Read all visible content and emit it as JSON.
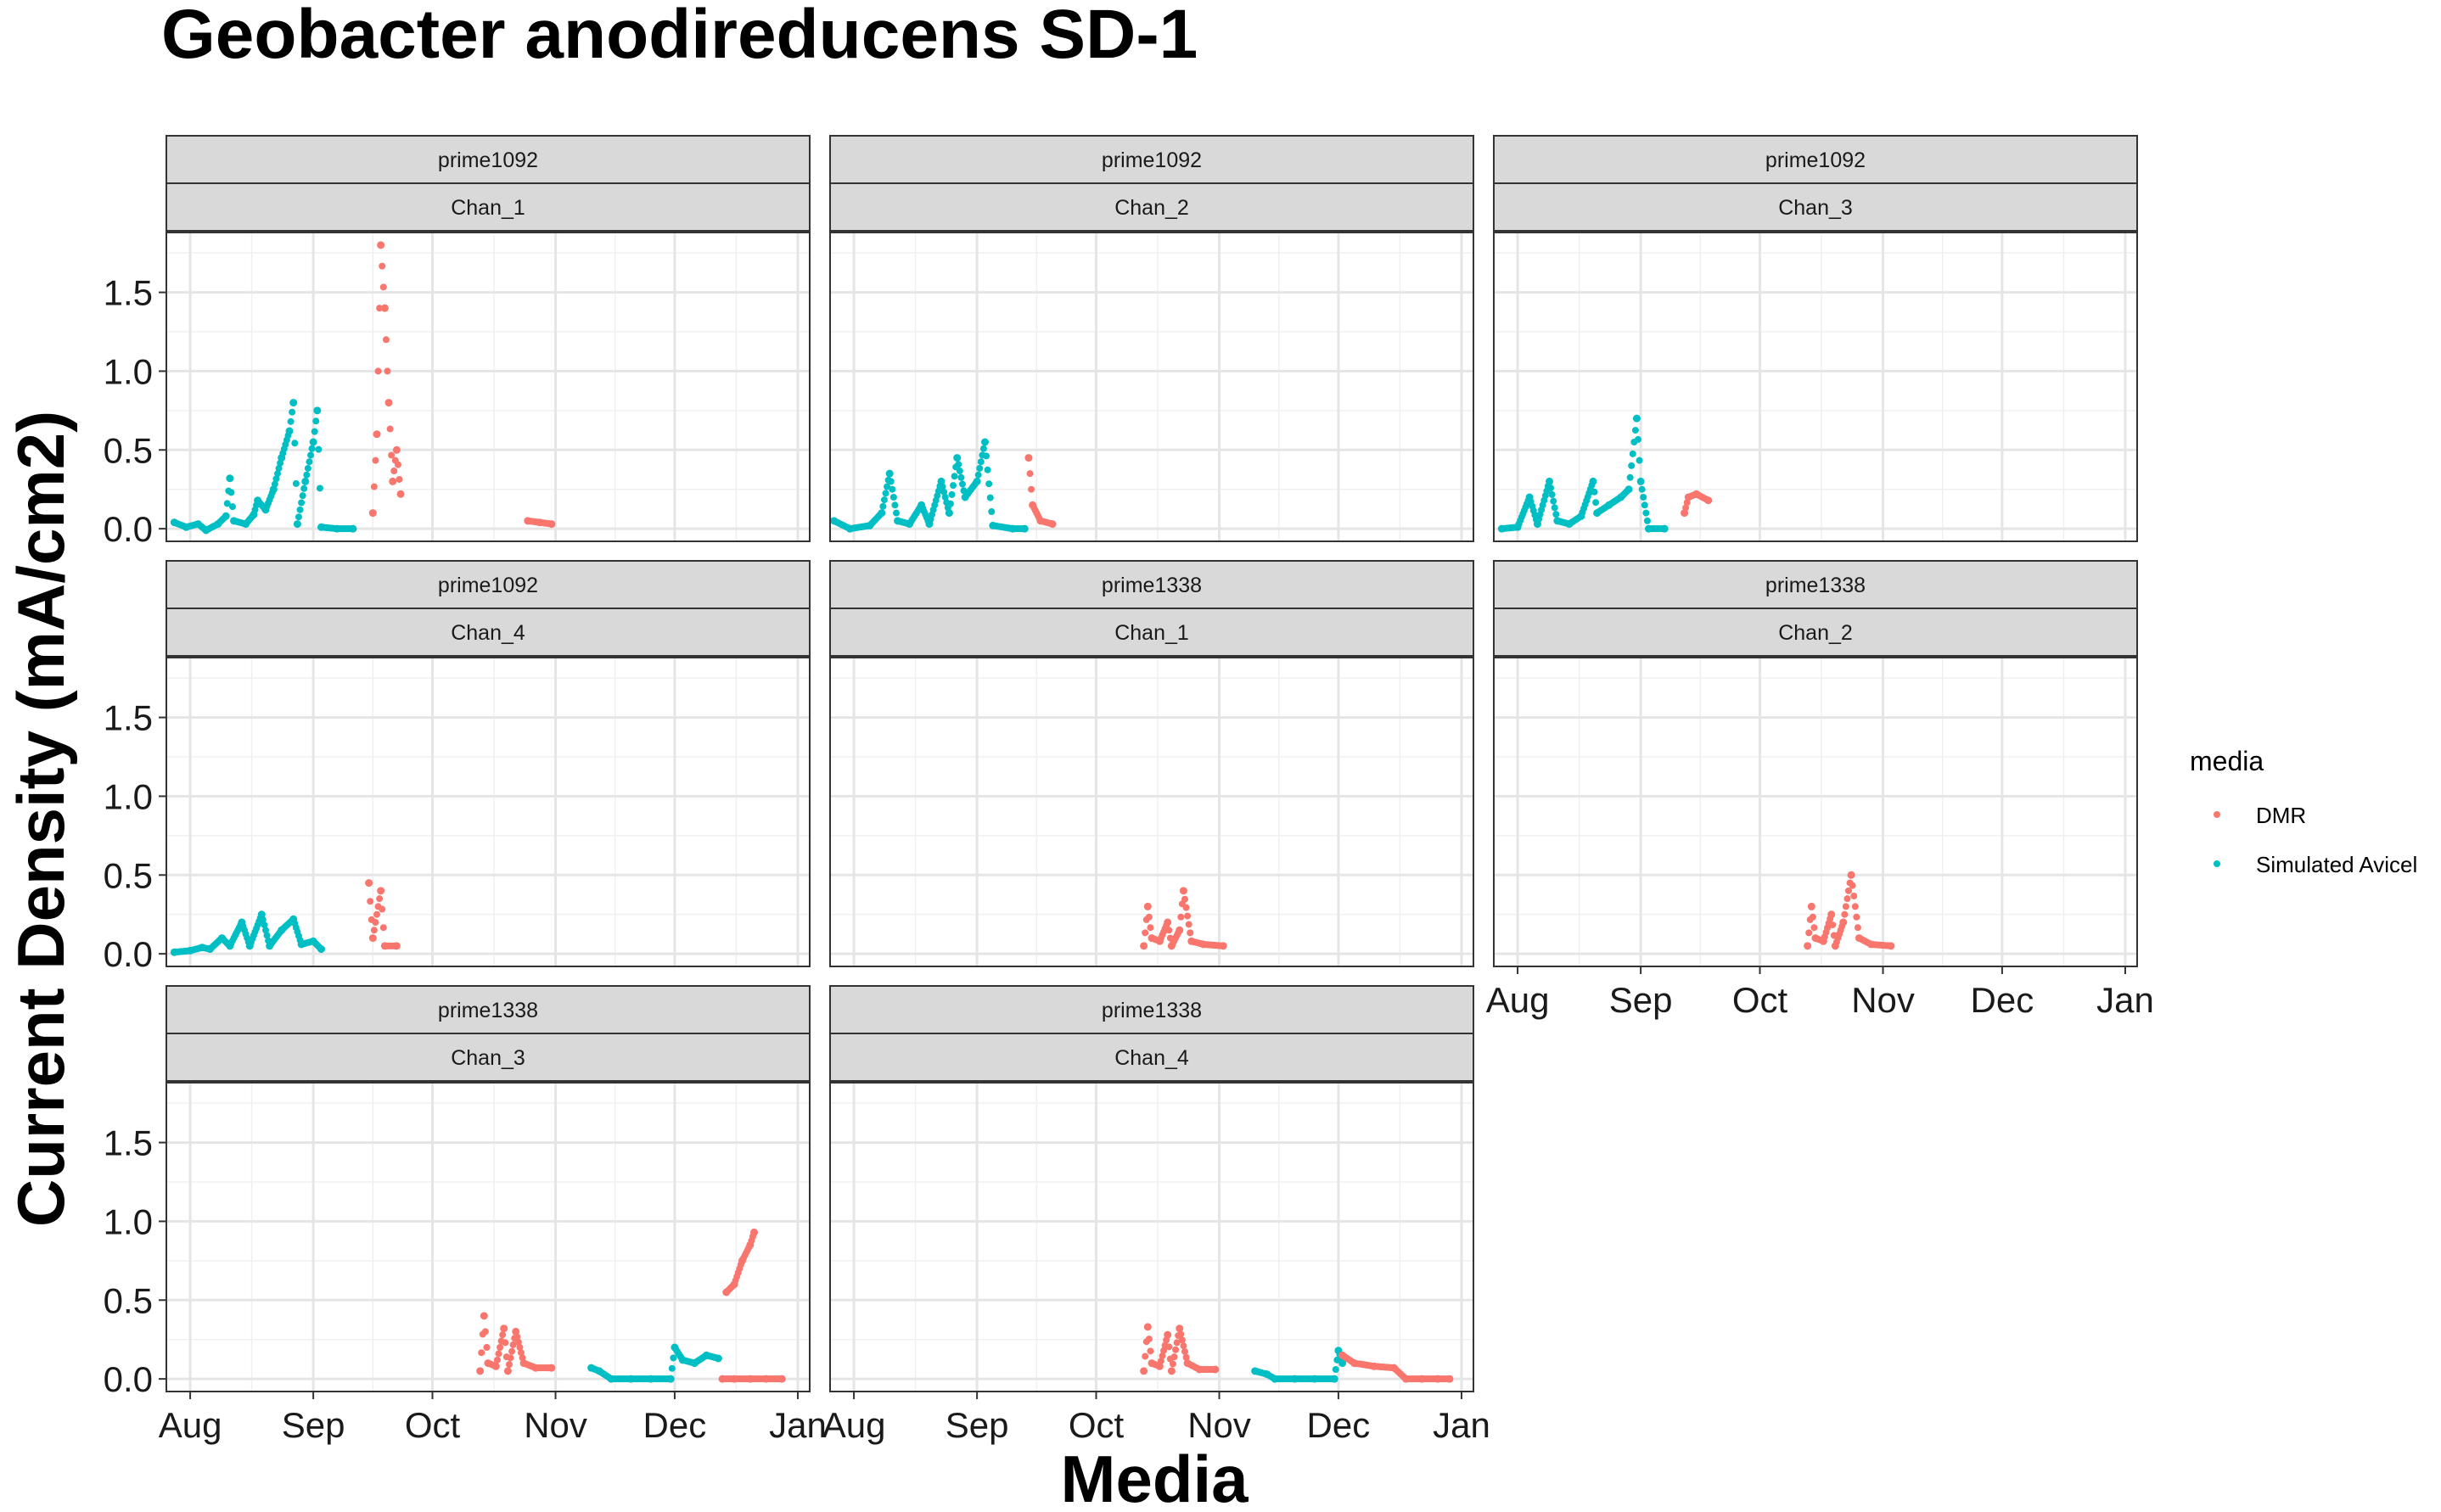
{
  "chart_data": {
    "type": "scatter",
    "title": "Geobacter anodireducens SD-1",
    "xlabel": "Media",
    "ylabel": "Current Density (mA/cm2)",
    "x_ticks": [
      "Aug",
      "Sep",
      "Oct",
      "Nov",
      "Dec",
      "Jan"
    ],
    "x_range": [
      "2021-07-26",
      "2022-01-04"
    ],
    "y_ticks": [
      "0.0",
      "0.5",
      "1.0",
      "1.5"
    ],
    "y_range": [
      -0.08,
      1.88
    ],
    "grid": true,
    "legend": {
      "title": "media",
      "position": "right",
      "entries": [
        {
          "label": "DMR",
          "color": "#F8766D"
        },
        {
          "label": "Simulated Avicel",
          "color": "#00BFC4"
        }
      ]
    },
    "panels": [
      {
        "strip1": "prime1092",
        "strip2": "Chan_1",
        "segments": [
          {
            "media": "Simulated Avicel",
            "points": [
              [
                "2021-07-28",
                0.04
              ],
              [
                "2021-07-31",
                0.01
              ],
              [
                "2021-08-03",
                0.03
              ],
              [
                "2021-08-05",
                -0.01
              ],
              [
                "2021-08-08",
                0.03
              ],
              [
                "2021-08-10",
                0.08
              ],
              [
                "2021-08-11",
                0.32
              ],
              [
                "2021-08-12",
                0.05
              ],
              [
                "2021-08-15",
                0.03
              ],
              [
                "2021-08-17",
                0.09
              ],
              [
                "2021-08-18",
                0.18
              ],
              [
                "2021-08-20",
                0.12
              ],
              [
                "2021-08-22",
                0.25
              ],
              [
                "2021-08-24",
                0.45
              ],
              [
                "2021-08-26",
                0.62
              ],
              [
                "2021-08-27",
                0.8
              ],
              [
                "2021-08-28",
                0.03
              ],
              [
                "2021-08-30",
                0.3
              ],
              [
                "2021-09-01",
                0.55
              ],
              [
                "2021-09-02",
                0.75
              ],
              [
                "2021-09-03",
                0.01
              ],
              [
                "2021-09-07",
                0.0
              ],
              [
                "2021-09-11",
                0.0
              ]
            ]
          },
          {
            "media": "DMR",
            "points": [
              [
                "2021-09-16",
                0.1
              ],
              [
                "2021-09-17",
                0.6
              ],
              [
                "2021-09-18",
                1.8
              ],
              [
                "2021-09-19",
                1.4
              ],
              [
                "2021-09-20",
                0.8
              ],
              [
                "2021-09-21",
                0.3
              ],
              [
                "2021-09-22",
                0.5
              ],
              [
                "2021-09-23",
                0.22
              ]
            ]
          },
          {
            "media": "DMR",
            "points": [
              [
                "2021-10-25",
                0.05
              ],
              [
                "2021-10-28",
                0.04
              ],
              [
                "2021-10-31",
                0.03
              ]
            ]
          }
        ]
      },
      {
        "strip1": "prime1092",
        "strip2": "Chan_2",
        "segments": [
          {
            "media": "Simulated Avicel",
            "points": [
              [
                "2021-07-27",
                0.05
              ],
              [
                "2021-07-31",
                0.0
              ],
              [
                "2021-08-05",
                0.02
              ],
              [
                "2021-08-08",
                0.1
              ],
              [
                "2021-08-10",
                0.35
              ],
              [
                "2021-08-12",
                0.05
              ],
              [
                "2021-08-15",
                0.03
              ],
              [
                "2021-08-18",
                0.15
              ],
              [
                "2021-08-20",
                0.03
              ],
              [
                "2021-08-23",
                0.3
              ],
              [
                "2021-08-25",
                0.1
              ],
              [
                "2021-08-27",
                0.45
              ],
              [
                "2021-08-29",
                0.2
              ],
              [
                "2021-09-01",
                0.3
              ],
              [
                "2021-09-03",
                0.55
              ],
              [
                "2021-09-05",
                0.02
              ],
              [
                "2021-09-10",
                0.0
              ],
              [
                "2021-09-13",
                0.0
              ]
            ]
          },
          {
            "media": "DMR",
            "points": [
              [
                "2021-09-14",
                0.45
              ],
              [
                "2021-09-15",
                0.15
              ],
              [
                "2021-09-17",
                0.05
              ],
              [
                "2021-09-20",
                0.03
              ]
            ]
          }
        ]
      },
      {
        "strip1": "prime1092",
        "strip2": "Chan_3",
        "segments": [
          {
            "media": "Simulated Avicel",
            "points": [
              [
                "2021-07-28",
                0.0
              ],
              [
                "2021-08-01",
                0.01
              ],
              [
                "2021-08-04",
                0.2
              ],
              [
                "2021-08-06",
                0.03
              ],
              [
                "2021-08-09",
                0.3
              ],
              [
                "2021-08-11",
                0.05
              ],
              [
                "2021-08-14",
                0.03
              ],
              [
                "2021-08-17",
                0.08
              ],
              [
                "2021-08-20",
                0.3
              ],
              [
                "2021-08-21",
                0.1
              ],
              [
                "2021-08-24",
                0.15
              ],
              [
                "2021-08-27",
                0.2
              ],
              [
                "2021-08-29",
                0.25
              ],
              [
                "2021-08-31",
                0.7
              ],
              [
                "2021-09-01",
                0.3
              ],
              [
                "2021-09-03",
                0.0
              ],
              [
                "2021-09-07",
                0.0
              ]
            ]
          },
          {
            "media": "DMR",
            "points": [
              [
                "2021-09-12",
                0.1
              ],
              [
                "2021-09-13",
                0.2
              ],
              [
                "2021-09-15",
                0.22
              ],
              [
                "2021-09-18",
                0.18
              ]
            ]
          }
        ]
      },
      {
        "strip1": "prime1092",
        "strip2": "Chan_4",
        "segments": [
          {
            "media": "Simulated Avicel",
            "points": [
              [
                "2021-07-28",
                0.01
              ],
              [
                "2021-08-01",
                0.02
              ],
              [
                "2021-08-04",
                0.04
              ],
              [
                "2021-08-06",
                0.03
              ],
              [
                "2021-08-09",
                0.1
              ],
              [
                "2021-08-11",
                0.05
              ],
              [
                "2021-08-14",
                0.2
              ],
              [
                "2021-08-16",
                0.05
              ],
              [
                "2021-08-19",
                0.25
              ],
              [
                "2021-08-21",
                0.05
              ],
              [
                "2021-08-24",
                0.15
              ],
              [
                "2021-08-27",
                0.22
              ],
              [
                "2021-08-29",
                0.06
              ],
              [
                "2021-09-01",
                0.08
              ],
              [
                "2021-09-03",
                0.03
              ]
            ]
          },
          {
            "media": "DMR",
            "points": [
              [
                "2021-09-15",
                0.45
              ],
              [
                "2021-09-16",
                0.1
              ],
              [
                "2021-09-18",
                0.4
              ],
              [
                "2021-09-19",
                0.05
              ],
              [
                "2021-09-22",
                0.05
              ]
            ]
          }
        ]
      },
      {
        "strip1": "prime1338",
        "strip2": "Chan_1",
        "segments": [
          {
            "media": "DMR",
            "points": [
              [
                "2021-10-13",
                0.05
              ],
              [
                "2021-10-14",
                0.3
              ],
              [
                "2021-10-15",
                0.1
              ],
              [
                "2021-10-17",
                0.08
              ],
              [
                "2021-10-19",
                0.2
              ],
              [
                "2021-10-20",
                0.05
              ],
              [
                "2021-10-22",
                0.15
              ],
              [
                "2021-10-23",
                0.4
              ],
              [
                "2021-10-25",
                0.08
              ],
              [
                "2021-10-28",
                0.06
              ],
              [
                "2021-11-02",
                0.05
              ]
            ]
          }
        ]
      },
      {
        "strip1": "prime1338",
        "strip2": "Chan_2",
        "segments": [
          {
            "media": "DMR",
            "points": [
              [
                "2021-10-13",
                0.05
              ],
              [
                "2021-10-14",
                0.3
              ],
              [
                "2021-10-15",
                0.1
              ],
              [
                "2021-10-17",
                0.08
              ],
              [
                "2021-10-19",
                0.25
              ],
              [
                "2021-10-20",
                0.05
              ],
              [
                "2021-10-22",
                0.2
              ],
              [
                "2021-10-24",
                0.5
              ],
              [
                "2021-10-26",
                0.1
              ],
              [
                "2021-10-29",
                0.06
              ],
              [
                "2021-11-03",
                0.05
              ]
            ]
          }
        ]
      },
      {
        "strip1": "prime1338",
        "strip2": "Chan_3",
        "segments": [
          {
            "media": "DMR",
            "points": [
              [
                "2021-10-13",
                0.05
              ],
              [
                "2021-10-14",
                0.4
              ],
              [
                "2021-10-15",
                0.1
              ],
              [
                "2021-10-17",
                0.08
              ],
              [
                "2021-10-19",
                0.32
              ],
              [
                "2021-10-20",
                0.05
              ],
              [
                "2021-10-22",
                0.3
              ],
              [
                "2021-10-24",
                0.1
              ],
              [
                "2021-10-27",
                0.07
              ],
              [
                "2021-10-31",
                0.07
              ]
            ]
          },
          {
            "media": "Simulated Avicel",
            "points": [
              [
                "2021-11-10",
                0.07
              ],
              [
                "2021-11-12",
                0.05
              ],
              [
                "2021-11-15",
                0.0
              ],
              [
                "2021-11-20",
                0.0
              ],
              [
                "2021-11-25",
                0.0
              ],
              [
                "2021-11-30",
                0.0
              ],
              [
                "2021-12-01",
                0.2
              ],
              [
                "2021-12-03",
                0.12
              ],
              [
                "2021-12-06",
                0.1
              ],
              [
                "2021-12-09",
                0.15
              ],
              [
                "2021-12-12",
                0.13
              ]
            ]
          },
          {
            "media": "DMR",
            "points": [
              [
                "2021-12-14",
                0.55
              ],
              [
                "2021-12-16",
                0.6
              ],
              [
                "2021-12-18",
                0.75
              ],
              [
                "2021-12-20",
                0.85
              ],
              [
                "2021-12-21",
                0.93
              ]
            ]
          },
          {
            "media": "DMR",
            "points": [
              [
                "2021-12-13",
                0.0
              ],
              [
                "2021-12-16",
                0.0
              ],
              [
                "2021-12-20",
                0.0
              ],
              [
                "2021-12-24",
                0.0
              ],
              [
                "2021-12-28",
                0.0
              ]
            ]
          }
        ]
      },
      {
        "strip1": "prime1338",
        "strip2": "Chan_4",
        "segments": [
          {
            "media": "DMR",
            "points": [
              [
                "2021-10-13",
                0.05
              ],
              [
                "2021-10-14",
                0.33
              ],
              [
                "2021-10-15",
                0.1
              ],
              [
                "2021-10-17",
                0.08
              ],
              [
                "2021-10-19",
                0.28
              ],
              [
                "2021-10-20",
                0.05
              ],
              [
                "2021-10-22",
                0.32
              ],
              [
                "2021-10-24",
                0.1
              ],
              [
                "2021-10-27",
                0.06
              ],
              [
                "2021-10-31",
                0.06
              ]
            ]
          },
          {
            "media": "Simulated Avicel",
            "points": [
              [
                "2021-11-10",
                0.05
              ],
              [
                "2021-11-13",
                0.03
              ],
              [
                "2021-11-15",
                0.0
              ],
              [
                "2021-11-20",
                0.0
              ],
              [
                "2021-11-25",
                0.0
              ],
              [
                "2021-11-30",
                0.0
              ],
              [
                "2021-12-01",
                0.18
              ],
              [
                "2021-12-02",
                0.1
              ]
            ]
          },
          {
            "media": "DMR",
            "points": [
              [
                "2021-12-02",
                0.15
              ],
              [
                "2021-12-05",
                0.1
              ],
              [
                "2021-12-10",
                0.08
              ],
              [
                "2021-12-15",
                0.07
              ],
              [
                "2021-12-18",
                0.0
              ],
              [
                "2021-12-22",
                0.0
              ],
              [
                "2021-12-26",
                0.0
              ],
              [
                "2021-12-29",
                0.0
              ]
            ]
          }
        ]
      }
    ]
  }
}
